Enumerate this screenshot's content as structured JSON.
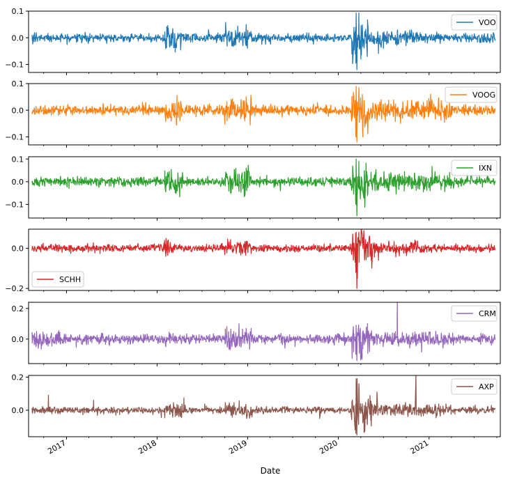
{
  "chart_data": {
    "type": "line",
    "xlabel": "Date",
    "x_range": [
      "2016-08-01",
      "2021-10-15"
    ],
    "x_ticks": [
      "2017",
      "2018",
      "2019",
      "2020",
      "2021"
    ],
    "grid": false,
    "panels": [
      {
        "series": {
          "name": "VOO",
          "color": "#1f77b4"
        },
        "legend_position": "upper right",
        "ylim": [
          -0.13,
          0.1
        ],
        "yticks": [
          {
            "value": 0.1,
            "label": "0.1"
          },
          {
            "value": 0.0,
            "label": "0.0"
          },
          {
            "value": -0.1,
            "label": "−0.1"
          }
        ],
        "baseline_volatility": 0.008,
        "events": [
          {
            "date": "2018-02-05",
            "value": -0.041
          },
          {
            "date": "2018-02-08",
            "value": -0.037
          },
          {
            "date": "2018-10-10",
            "value": -0.031
          },
          {
            "date": "2018-12-24",
            "value": -0.027
          },
          {
            "date": "2018-12-26",
            "value": 0.05
          },
          {
            "date": "2020-03-12",
            "value": -0.095
          },
          {
            "date": "2020-03-13",
            "value": 0.093
          },
          {
            "date": "2020-03-16",
            "value": -0.12
          },
          {
            "date": "2020-03-24",
            "value": 0.093
          },
          {
            "date": "2020-06-11",
            "value": -0.059
          }
        ],
        "turbulence": [
          {
            "start": "2018-02-01",
            "end": "2018-04-15",
            "scale": 2.5
          },
          {
            "start": "2018-10-01",
            "end": "2019-01-15",
            "scale": 2.5
          },
          {
            "start": "2020-02-24",
            "end": "2020-04-30",
            "scale": 5.0
          },
          {
            "start": "2020-05-01",
            "end": "2020-11-15",
            "scale": 1.8
          }
        ]
      },
      {
        "series": {
          "name": "VOOG",
          "color": "#ff7f0e"
        },
        "legend_position": "upper right",
        "ylim": [
          -0.13,
          0.1
        ],
        "yticks": [
          {
            "value": 0.1,
            "label": "0.1"
          },
          {
            "value": 0.0,
            "label": "0.0"
          },
          {
            "value": -0.1,
            "label": "−0.1"
          }
        ],
        "baseline_volatility": 0.009,
        "events": [
          {
            "date": "2018-02-05",
            "value": -0.042
          },
          {
            "date": "2018-10-10",
            "value": -0.04
          },
          {
            "date": "2018-12-26",
            "value": 0.051
          },
          {
            "date": "2020-03-12",
            "value": -0.1
          },
          {
            "date": "2020-03-13",
            "value": 0.09
          },
          {
            "date": "2020-03-16",
            "value": -0.12
          },
          {
            "date": "2020-03-24",
            "value": 0.085
          },
          {
            "date": "2020-09-08",
            "value": -0.05
          }
        ],
        "turbulence": [
          {
            "start": "2018-02-01",
            "end": "2018-04-15",
            "scale": 2.5
          },
          {
            "start": "2018-10-01",
            "end": "2019-01-15",
            "scale": 2.6
          },
          {
            "start": "2020-02-24",
            "end": "2020-04-30",
            "scale": 4.5
          },
          {
            "start": "2020-05-01",
            "end": "2021-03-31",
            "scale": 2.0
          }
        ]
      },
      {
        "series": {
          "name": "IXN",
          "color": "#2ca02c"
        },
        "legend_position": "upper right",
        "ylim": [
          -0.16,
          0.11
        ],
        "yticks": [
          {
            "value": 0.1,
            "label": "0.1"
          },
          {
            "value": 0.0,
            "label": "0.0"
          },
          {
            "value": -0.1,
            "label": "−0.1"
          }
        ],
        "baseline_volatility": 0.01,
        "events": [
          {
            "date": "2018-02-05",
            "value": -0.045
          },
          {
            "date": "2018-10-24",
            "value": -0.05
          },
          {
            "date": "2018-12-26",
            "value": 0.06
          },
          {
            "date": "2019-05-13",
            "value": -0.04
          },
          {
            "date": "2020-03-12",
            "value": -0.1
          },
          {
            "date": "2020-03-13",
            "value": 0.1
          },
          {
            "date": "2020-03-16",
            "value": -0.15
          },
          {
            "date": "2020-03-24",
            "value": 0.09
          }
        ],
        "turbulence": [
          {
            "start": "2018-02-01",
            "end": "2018-04-15",
            "scale": 2.5
          },
          {
            "start": "2018-10-01",
            "end": "2019-01-15",
            "scale": 2.8
          },
          {
            "start": "2020-02-24",
            "end": "2020-04-30",
            "scale": 4.5
          },
          {
            "start": "2020-05-01",
            "end": "2021-03-31",
            "scale": 1.9
          }
        ]
      },
      {
        "series": {
          "name": "SCHH",
          "color": "#d62728"
        },
        "legend_position": "lower left",
        "ylim": [
          -0.21,
          0.095
        ],
        "yticks": [
          {
            "value": 0.0,
            "label": "0.0"
          },
          {
            "value": -0.2,
            "label": "−0.2"
          }
        ],
        "baseline_volatility": 0.009,
        "events": [
          {
            "date": "2018-02-05",
            "value": -0.04
          },
          {
            "date": "2018-12-24",
            "value": -0.035
          },
          {
            "date": "2020-03-12",
            "value": -0.12
          },
          {
            "date": "2020-03-13",
            "value": 0.08
          },
          {
            "date": "2020-03-16",
            "value": -0.2
          },
          {
            "date": "2020-03-18",
            "value": -0.15
          },
          {
            "date": "2020-03-24",
            "value": 0.08
          },
          {
            "date": "2020-04-06",
            "value": 0.07
          },
          {
            "date": "2020-06-11",
            "value": -0.06
          }
        ],
        "turbulence": [
          {
            "start": "2018-01-25",
            "end": "2018-03-15",
            "scale": 2.0
          },
          {
            "start": "2018-10-01",
            "end": "2019-01-15",
            "scale": 2.0
          },
          {
            "start": "2020-02-24",
            "end": "2020-05-15",
            "scale": 5.0
          },
          {
            "start": "2020-05-16",
            "end": "2020-12-31",
            "scale": 1.8
          }
        ]
      },
      {
        "series": {
          "name": "CRM",
          "color": "#9467bd"
        },
        "legend_position": "upper right",
        "ylim": [
          -0.16,
          0.24
        ],
        "yticks": [
          {
            "value": 0.2,
            "label": "0.2"
          },
          {
            "value": 0.0,
            "label": "0.0"
          }
        ],
        "baseline_volatility": 0.015,
        "events": [
          {
            "date": "2016-08-31",
            "value": -0.05
          },
          {
            "date": "2016-09-02",
            "value": 0.05
          },
          {
            "date": "2016-12-01",
            "value": 0.055
          },
          {
            "date": "2018-02-05",
            "value": -0.05
          },
          {
            "date": "2018-10-24",
            "value": -0.06
          },
          {
            "date": "2018-11-27",
            "value": 0.1
          },
          {
            "date": "2018-12-26",
            "value": 0.07
          },
          {
            "date": "2019-05-31",
            "value": -0.06
          },
          {
            "date": "2020-03-12",
            "value": -0.1
          },
          {
            "date": "2020-03-13",
            "value": 0.09
          },
          {
            "date": "2020-03-16",
            "value": -0.14
          },
          {
            "date": "2020-08-26",
            "value": 0.26
          },
          {
            "date": "2020-12-02",
            "value": -0.085
          },
          {
            "date": "2021-02-26",
            "value": -0.06
          }
        ],
        "turbulence": [
          {
            "start": "2016-08-01",
            "end": "2016-12-15",
            "scale": 1.8
          },
          {
            "start": "2018-10-01",
            "end": "2019-01-15",
            "scale": 2.2
          },
          {
            "start": "2020-02-24",
            "end": "2020-05-15",
            "scale": 3.5
          },
          {
            "start": "2020-05-16",
            "end": "2021-03-31",
            "scale": 1.6
          }
        ]
      },
      {
        "series": {
          "name": "AXP",
          "color": "#8c564b"
        },
        "legend_position": "upper right",
        "ylim": [
          -0.16,
          0.21
        ],
        "yticks": [
          {
            "value": 0.2,
            "label": "0.2"
          },
          {
            "value": 0.0,
            "label": "0.0"
          }
        ],
        "baseline_volatility": 0.01,
        "events": [
          {
            "date": "2016-10-20",
            "value": 0.09
          },
          {
            "date": "2017-04-20",
            "value": 0.06
          },
          {
            "date": "2018-01-18",
            "value": -0.045
          },
          {
            "date": "2018-04-19",
            "value": 0.075
          },
          {
            "date": "2018-10-19",
            "value": 0.045
          },
          {
            "date": "2019-01-18",
            "value": -0.04
          },
          {
            "date": "2019-10-18",
            "value": -0.05
          },
          {
            "date": "2020-03-09",
            "value": -0.12
          },
          {
            "date": "2020-03-12",
            "value": -0.14
          },
          {
            "date": "2020-03-13",
            "value": 0.19
          },
          {
            "date": "2020-03-16",
            "value": -0.15
          },
          {
            "date": "2020-03-17",
            "value": 0.19
          },
          {
            "date": "2020-03-24",
            "value": 0.16
          },
          {
            "date": "2020-11-09",
            "value": 0.215
          },
          {
            "date": "2020-06-05",
            "value": 0.11
          }
        ],
        "turbulence": [
          {
            "start": "2018-02-01",
            "end": "2018-04-15",
            "scale": 2.2
          },
          {
            "start": "2018-10-01",
            "end": "2019-01-15",
            "scale": 2.4
          },
          {
            "start": "2020-02-24",
            "end": "2020-05-15",
            "scale": 5.0
          },
          {
            "start": "2020-05-16",
            "end": "2021-03-31",
            "scale": 2.0
          }
        ]
      }
    ]
  }
}
